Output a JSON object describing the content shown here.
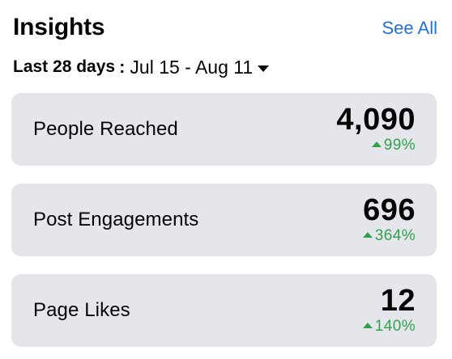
{
  "header": {
    "title": "Insights",
    "see_all_label": "See All"
  },
  "date_filter": {
    "label": "Last 28 days",
    "separator": ":",
    "range": "Jul 15 - Aug 11",
    "icon": "caret-down-icon"
  },
  "metrics": [
    {
      "label": "People Reached",
      "value": "4,090",
      "change": "99%",
      "direction": "up"
    },
    {
      "label": "Post Engagements",
      "value": "696",
      "change": "364%",
      "direction": "up"
    },
    {
      "label": "Page Likes",
      "value": "12",
      "change": "140%",
      "direction": "up"
    }
  ],
  "colors": {
    "link": "#216fdb",
    "positive": "#31a24c",
    "card_bg": "#e4e6eb",
    "text": "#050505"
  }
}
